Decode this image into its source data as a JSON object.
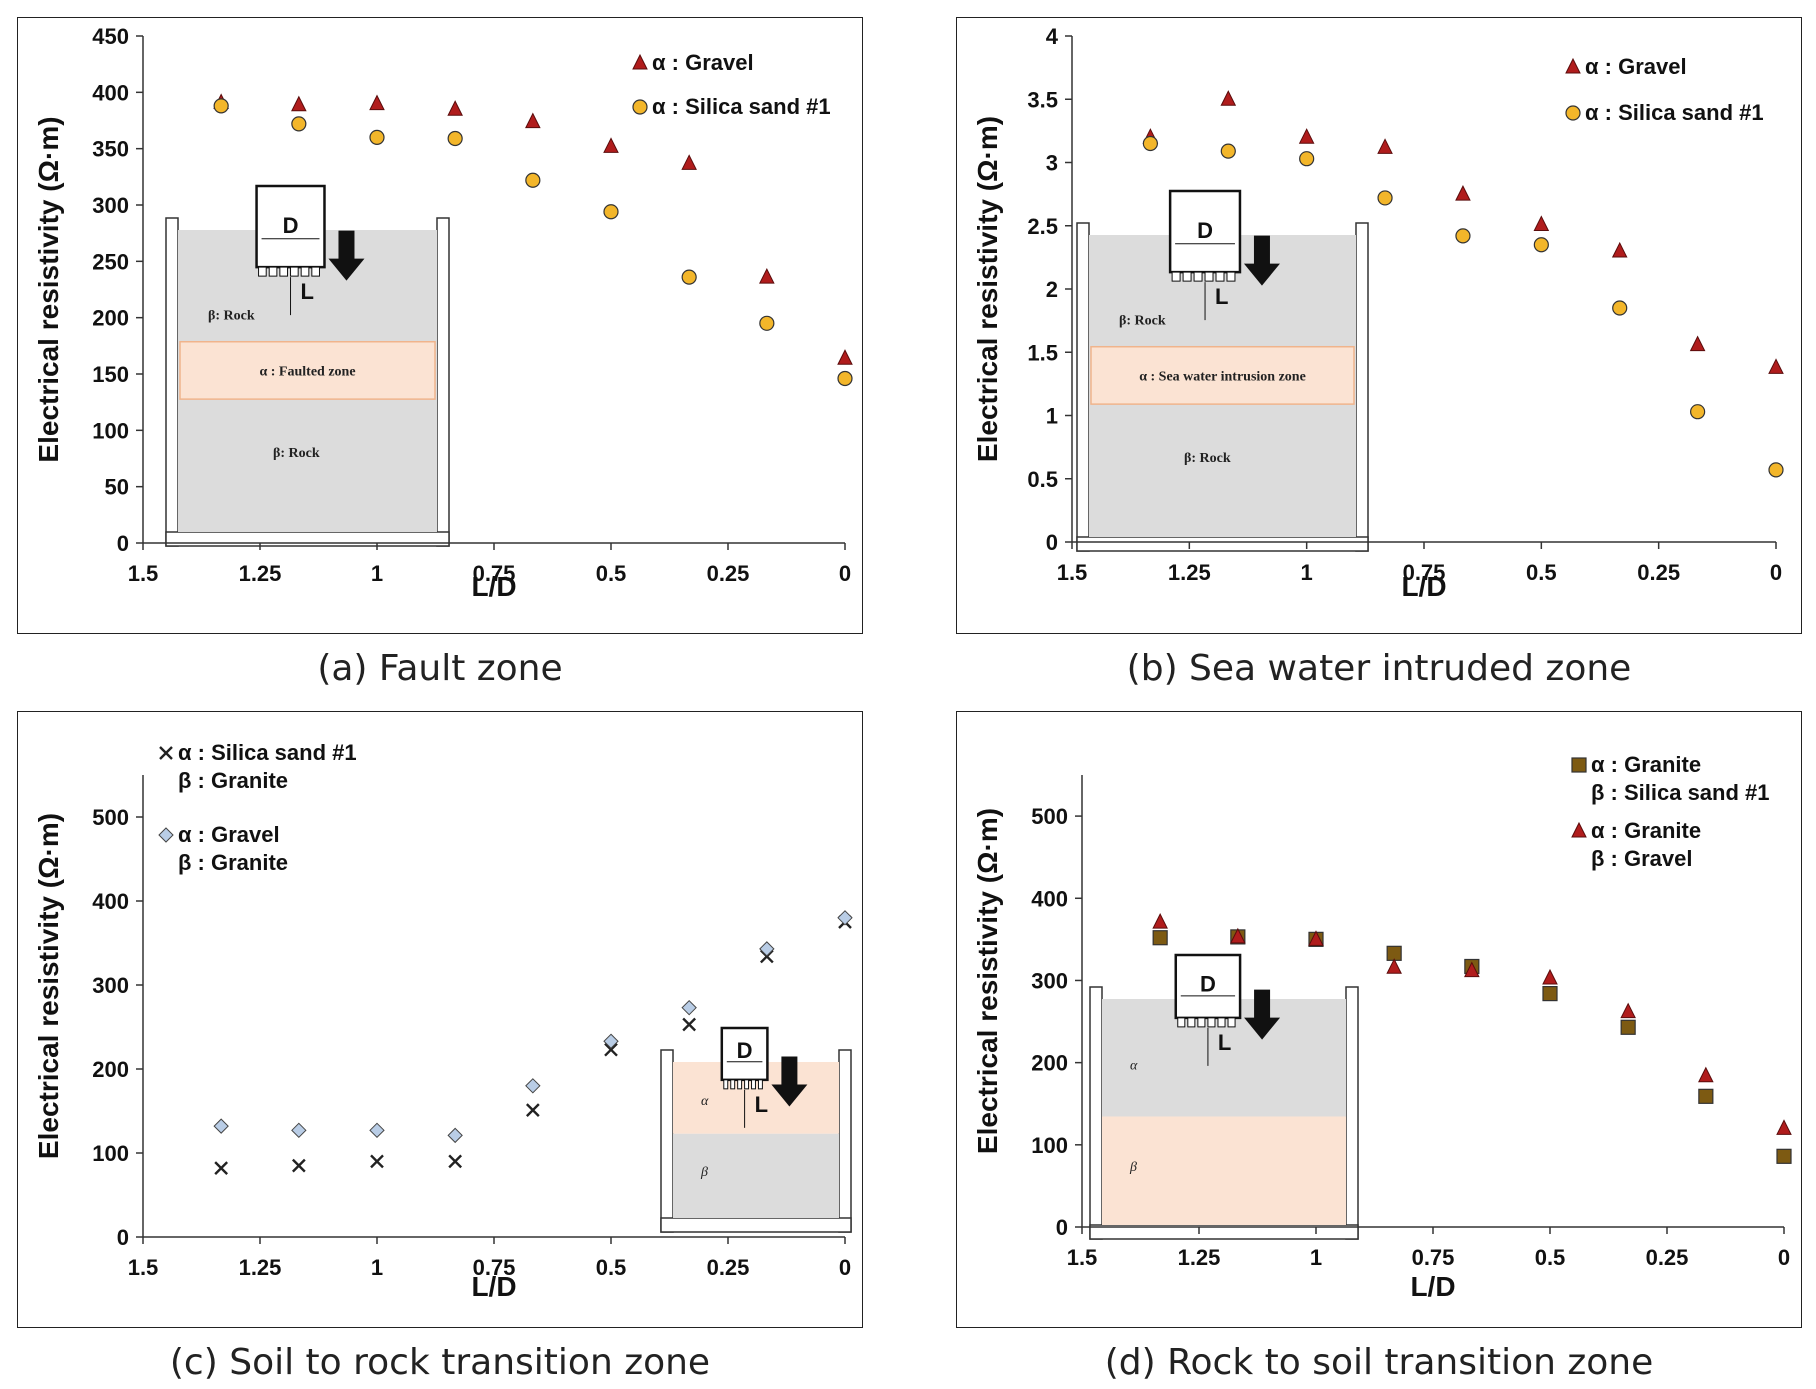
{
  "chart_data": [
    {
      "type": "scatter",
      "id": "a",
      "caption": "(a) Fault zone",
      "xlabel": "L/D",
      "ylabel": "Electrical resistivity (Ω·m)",
      "xlim": [
        1.5,
        0
      ],
      "ylim": [
        0,
        450
      ],
      "xticks": [
        "1.5",
        "1.25",
        "1",
        "0.75",
        "0.5",
        "0.25",
        "0"
      ],
      "yticks": [
        "0",
        "50",
        "100",
        "150",
        "200",
        "250",
        "300",
        "350",
        "400",
        "450"
      ],
      "x": [
        1.333,
        1.167,
        1.0,
        0.833,
        0.667,
        0.5,
        0.333,
        0.167,
        0.0
      ],
      "series": [
        {
          "name": "α : Gravel",
          "marker": "triangle",
          "color": "#b01c1c",
          "values": [
            391,
            389,
            390,
            385,
            374,
            352,
            337,
            236,
            164
          ]
        },
        {
          "name": "α : Silica sand #1",
          "marker": "circle",
          "color": "#f3b62a",
          "values": [
            388,
            372,
            360,
            359,
            322,
            294,
            236,
            195,
            146
          ]
        }
      ],
      "diagram": {
        "top": "β: Rock",
        "middle": "α : Faulted zone",
        "bottom": "β: Rock",
        "d": "D",
        "l": "L"
      }
    },
    {
      "type": "scatter",
      "id": "b",
      "caption": "(b) Sea water intruded zone",
      "xlabel": "L/D",
      "ylabel": "Electrical resistivity (Ω·m)",
      "xlim": [
        1.5,
        0
      ],
      "ylim": [
        0,
        4
      ],
      "xticks": [
        "1.5",
        "1.25",
        "1",
        "0.75",
        "0.5",
        "0.25",
        "0"
      ],
      "yticks": [
        "0",
        "0.5",
        "1",
        "1.5",
        "2",
        "2.5",
        "3",
        "3.5",
        "4"
      ],
      "x": [
        1.333,
        1.167,
        1.0,
        0.833,
        0.667,
        0.5,
        0.333,
        0.167,
        0.0
      ],
      "series": [
        {
          "name": "α : Gravel",
          "marker": "triangle",
          "color": "#b01c1c",
          "values": [
            3.2,
            3.5,
            3.2,
            3.12,
            2.75,
            2.51,
            2.3,
            1.56,
            1.38
          ]
        },
        {
          "name": "α : Silica sand #1",
          "marker": "circle",
          "color": "#f3b62a",
          "values": [
            3.15,
            3.09,
            3.03,
            2.72,
            2.42,
            2.35,
            1.85,
            1.03,
            0.57
          ]
        }
      ],
      "diagram": {
        "top": "β: Rock",
        "middle": "α : Sea water intrusion zone",
        "bottom": "β: Rock",
        "d": "D",
        "l": "L"
      }
    },
    {
      "type": "scatter",
      "id": "c",
      "caption": "(c) Soil to rock transition zone",
      "xlabel": "L/D",
      "ylabel": "Electrical resistivity (Ω·m)",
      "xlim": [
        1.5,
        0
      ],
      "ylim": [
        0,
        550
      ],
      "xticks": [
        "1.5",
        "1.25",
        "1",
        "0.75",
        "0.5",
        "0.25",
        "0"
      ],
      "yticks": [
        "0",
        "100",
        "200",
        "300",
        "400",
        "500"
      ],
      "x": [
        1.333,
        1.167,
        1.0,
        0.833,
        0.667,
        0.5,
        0.333,
        0.167,
        0.0
      ],
      "series": [
        {
          "name": "α : Silica sand #1",
          "name2": "β : Granite",
          "marker": "cross",
          "color": "#222222",
          "values": [
            82,
            85,
            90,
            90,
            151,
            223,
            253,
            334,
            375
          ]
        },
        {
          "name": "α : Gravel",
          "name2": "β : Granite",
          "marker": "diamond",
          "color": "#b9cde6",
          "values": [
            132,
            127,
            127,
            121,
            180,
            233,
            273,
            343,
            380
          ]
        }
      ],
      "diagram": {
        "top": "α",
        "bottom": "β",
        "d": "D",
        "l": "L"
      }
    },
    {
      "type": "scatter",
      "id": "d",
      "caption": "(d) Rock to soil transition zone",
      "xlabel": "L/D",
      "ylabel": "Electrical resistivity (Ω·m)",
      "xlim": [
        1.5,
        0
      ],
      "ylim": [
        0,
        550
      ],
      "xticks": [
        "1.5",
        "1.25",
        "1",
        "0.75",
        "0.5",
        "0.25",
        "0"
      ],
      "yticks": [
        "0",
        "100",
        "200",
        "300",
        "400",
        "500"
      ],
      "x": [
        1.333,
        1.167,
        1.0,
        0.833,
        0.667,
        0.5,
        0.333,
        0.167,
        0.0
      ],
      "series": [
        {
          "name": "α : Granite",
          "name2": "β : Silica sand #1",
          "marker": "square",
          "color": "#7d5a12",
          "values": [
            352,
            353,
            350,
            333,
            317,
            284,
            243,
            159,
            86
          ]
        },
        {
          "name": "α : Granite",
          "name2": "β : Gravel",
          "marker": "triangle",
          "color": "#b01c1c",
          "values": [
            371,
            353,
            350,
            316,
            312,
            303,
            262,
            184,
            120
          ]
        }
      ],
      "diagram": {
        "top": "α",
        "bottom": "β",
        "d": "D",
        "l": "L"
      }
    }
  ]
}
